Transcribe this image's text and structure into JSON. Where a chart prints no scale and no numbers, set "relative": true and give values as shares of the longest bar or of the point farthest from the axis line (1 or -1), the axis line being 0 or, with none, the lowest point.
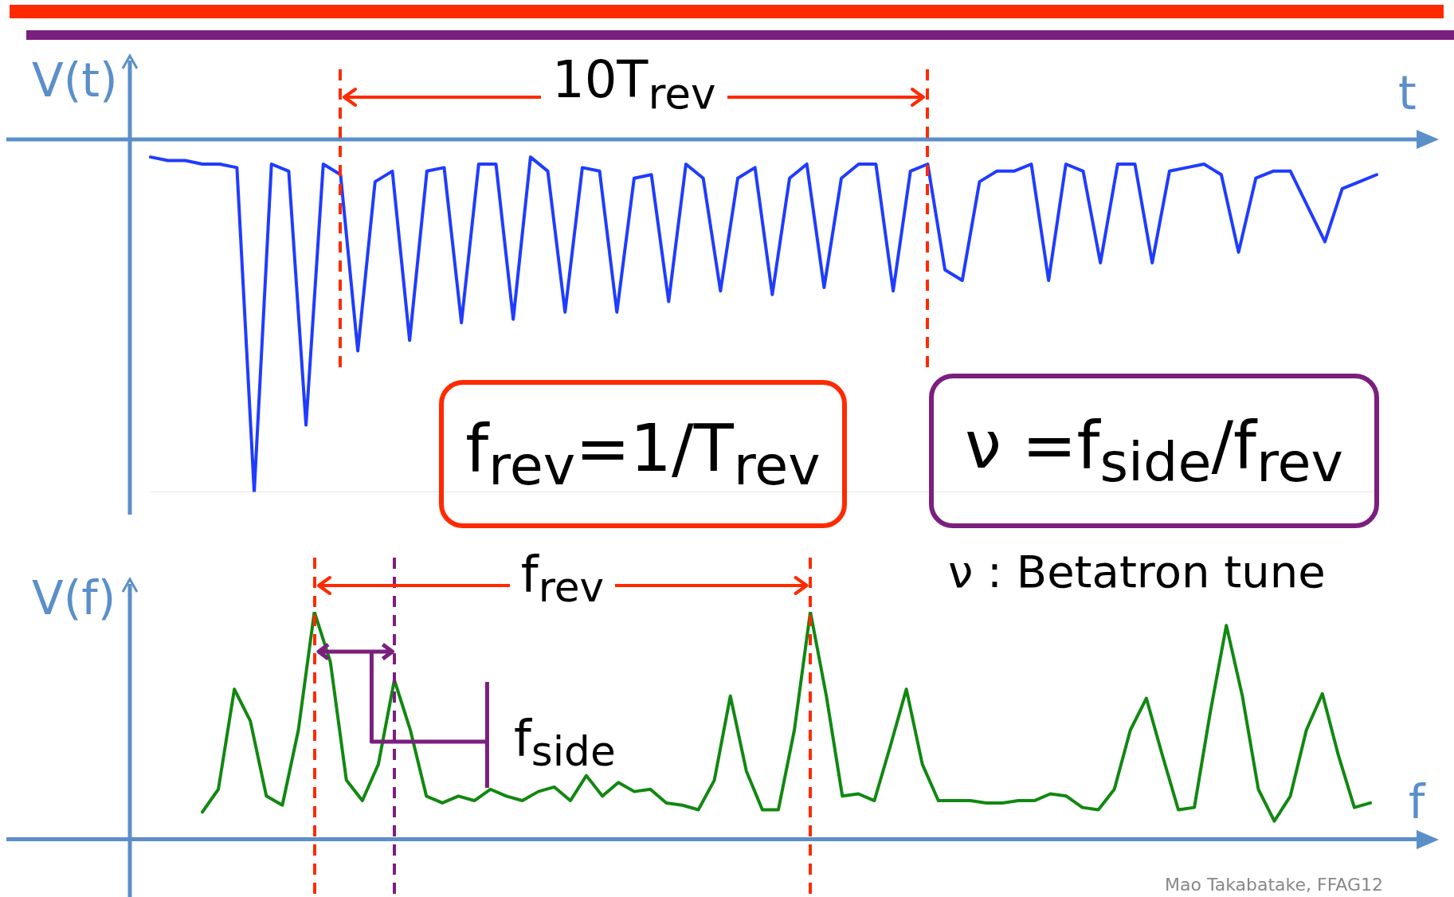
{
  "chart_data": [
    {
      "type": "line",
      "relative": true,
      "xlabel": "t",
      "ylabel": "V(t)",
      "marker": "none",
      "annotations": [
        "10T$_{rev}$",
        "f$_{rev}$=1/T$_{rev}$",
        "ν =f$_{side}$/f$_{rev}$"
      ],
      "categories": [
        null,
        null,
        null,
        null,
        null,
        null,
        null,
        null,
        null,
        null,
        null,
        null,
        null,
        null,
        null,
        null,
        null,
        null,
        null,
        null,
        null,
        null,
        null,
        null,
        null,
        null,
        null,
        null,
        null,
        null,
        null,
        null,
        null,
        null,
        null,
        null,
        null,
        null,
        null,
        null,
        null,
        null,
        null,
        null,
        null,
        null,
        null,
        null,
        null,
        null,
        null,
        null,
        null,
        null,
        null,
        null,
        null,
        null,
        null,
        null,
        null,
        null,
        null,
        null,
        null,
        null,
        null,
        null,
        null,
        null,
        null,
        null
      ],
      "series": [
        {
          "color": "#1f3cff",
          "values": [
            -0.05,
            -0.06,
            -0.06,
            -0.07,
            -0.07,
            -0.08,
            -1,
            -0.07,
            -0.09,
            -0.81,
            -0.07,
            -0.1,
            -0.6,
            -0.12,
            -0.09,
            -0.57,
            -0.09,
            -0.08,
            -0.52,
            -0.07,
            -0.07,
            -0.51,
            -0.05,
            -0.09,
            -0.49,
            -0.08,
            -0.09,
            -0.49,
            -0.11,
            -0.1,
            -0.46,
            -0.07,
            -0.11,
            -0.43,
            -0.11,
            -0.08,
            -0.44,
            -0.11,
            -0.07,
            -0.42,
            -0.11,
            -0.07,
            -0.07,
            -0.43,
            -0.09,
            -0.07,
            -0.37,
            -0.4,
            -0.12,
            -0.09,
            -0.09,
            -0.07,
            -0.4,
            -0.07,
            -0.09,
            -0.35,
            -0.07,
            -0.07,
            -0.35,
            -0.09,
            -0.08,
            -0.07,
            -0.1,
            -0.32,
            -0.11,
            -0.09,
            -0.09,
            -0.19,
            -0.29,
            -0.14,
            -0.12,
            -0.1
          ]
        }
      ]
    },
    {
      "type": "line",
      "relative": true,
      "xlabel": "f",
      "ylabel": "V(f)",
      "marker": "none",
      "annotations": [
        "f$_{rev}$",
        "f$_{side}$",
        "ν : Betatron tune",
        "Mao Takabatake, FFAG12"
      ],
      "categories": [
        null,
        null,
        null,
        null,
        null,
        null,
        null,
        null,
        null,
        null,
        null,
        null,
        null,
        null,
        null,
        null,
        null,
        null,
        null,
        null,
        null,
        null,
        null,
        null,
        null,
        null,
        null,
        null,
        null,
        null,
        null,
        null,
        null,
        null,
        null,
        null,
        null,
        null,
        null,
        null,
        null,
        null,
        null,
        null,
        null,
        null,
        null,
        null,
        null,
        null,
        null,
        null,
        null,
        null,
        null,
        null,
        null,
        null,
        null,
        null,
        null,
        null,
        null,
        null,
        null,
        null,
        null,
        null,
        null,
        null,
        null,
        null,
        null,
        null
      ],
      "series": [
        {
          "color": "#118811",
          "values": [
            0.12,
            0.22,
            0.66,
            0.52,
            0.19,
            0.15,
            0.48,
            1,
            0.78,
            0.26,
            0.17,
            0.33,
            0.7,
            0.48,
            0.19,
            0.16,
            0.19,
            0.17,
            0.22,
            0.19,
            0.17,
            0.21,
            0.23,
            0.17,
            0.28,
            0.19,
            0.25,
            0.21,
            0.22,
            0.16,
            0.15,
            0.13,
            0.26,
            0.63,
            0.3,
            0.13,
            0.13,
            0.48,
            1,
            0.63,
            0.19,
            0.2,
            0.17,
            0.41,
            0.66,
            0.33,
            0.17,
            0.17,
            0.17,
            0.16,
            0.16,
            0.17,
            0.17,
            0.2,
            0.19,
            0.14,
            0.13,
            0.22,
            0.48,
            0.62,
            0.37,
            0.13,
            0.14,
            0.56,
            0.94,
            0.63,
            0.22,
            0.08,
            0.19,
            0.48,
            0.64,
            0.37,
            0.14,
            0.16
          ]
        }
      ]
    }
  ]
}
